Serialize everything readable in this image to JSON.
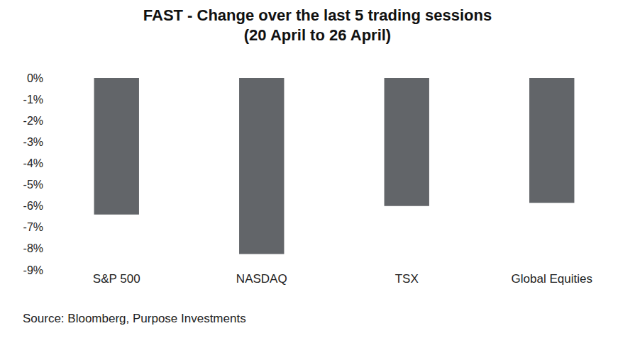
{
  "chart_data": {
    "type": "bar",
    "title": "FAST - Change over the last 5 trading sessions",
    "subtitle": "(20 April to 26 April)",
    "categories": [
      "S&P 500",
      "NASDAQ",
      "TSX",
      "Global Equities"
    ],
    "values": [
      -6.4,
      -8.25,
      -6.0,
      -5.85
    ],
    "color": "#626569",
    "ylim": [
      -9,
      0
    ],
    "yticks": [
      {
        "value": 0,
        "label": "0%"
      },
      {
        "value": -1,
        "label": "-1%"
      },
      {
        "value": -2,
        "label": "-2%"
      },
      {
        "value": -3,
        "label": "-3%"
      },
      {
        "value": -4,
        "label": "-4%"
      },
      {
        "value": -5,
        "label": "-5%"
      },
      {
        "value": -6,
        "label": "-6%"
      },
      {
        "value": -7,
        "label": "-7%"
      },
      {
        "value": -8,
        "label": "-8%"
      },
      {
        "value": -9,
        "label": "-9%"
      }
    ],
    "grid": false,
    "annotations": [
      "Source: Bloomberg, Purpose Investments"
    ]
  }
}
